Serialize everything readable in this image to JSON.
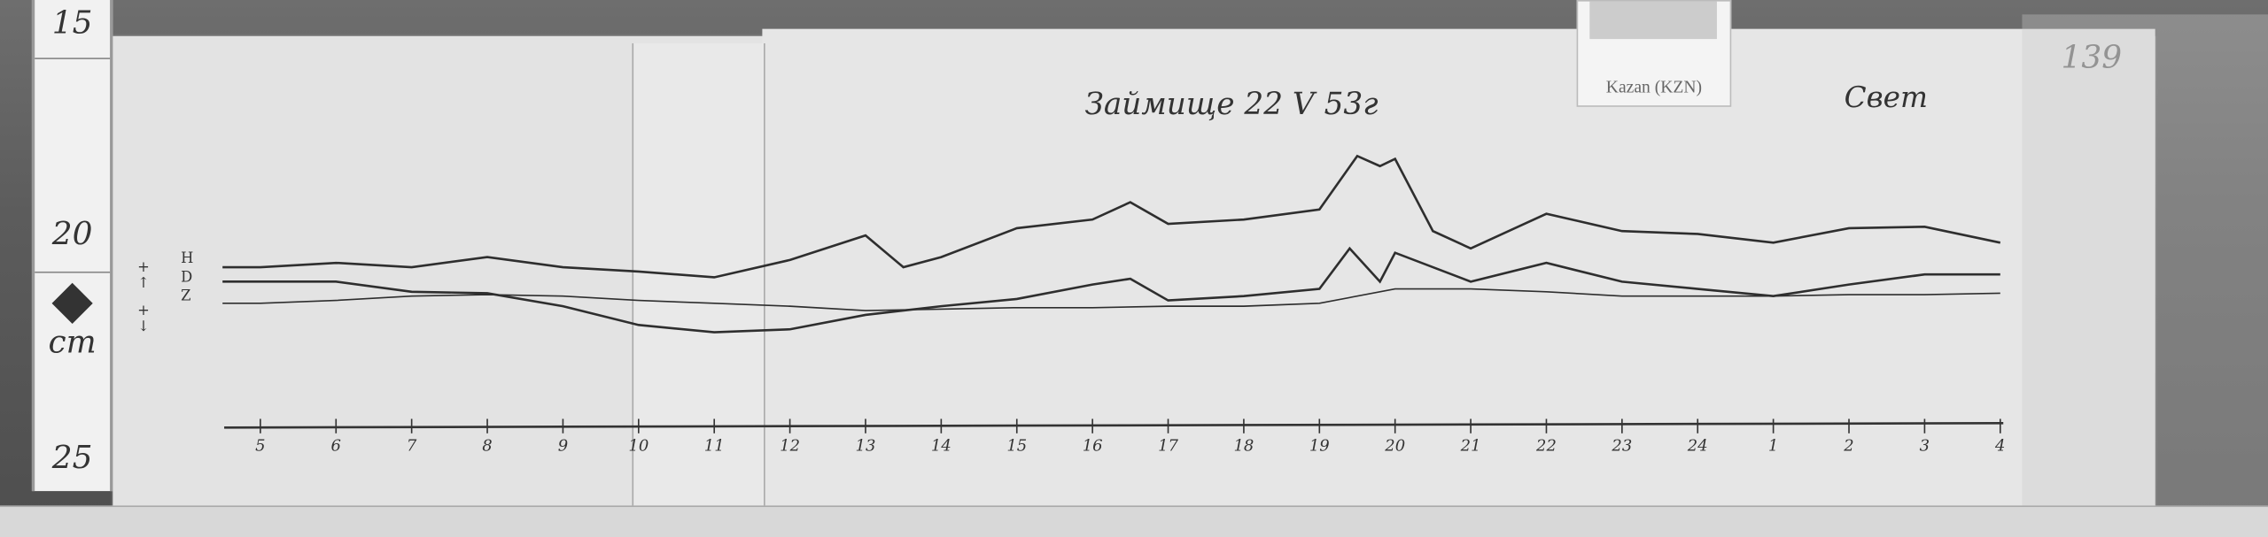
{
  "ruler": {
    "labels": [
      "15",
      "20",
      "cm",
      "25"
    ]
  },
  "label_station": "Kazan (KZN)",
  "title": "Займище 22 V 53г",
  "title_right": "Свет",
  "sheet_number": "139",
  "legend": {
    "components": [
      "H",
      "D",
      "Z"
    ],
    "signs": [
      "+ ↑",
      "+ ↓"
    ]
  },
  "time_axis": {
    "ticks": [
      "5",
      "6",
      "7",
      "8",
      "9",
      "10",
      "11",
      "12",
      "13",
      "14",
      "15",
      "16",
      "17",
      "18",
      "19",
      "20",
      "21",
      "22",
      "23",
      "24",
      "1",
      "2",
      "3",
      "4"
    ]
  }
}
